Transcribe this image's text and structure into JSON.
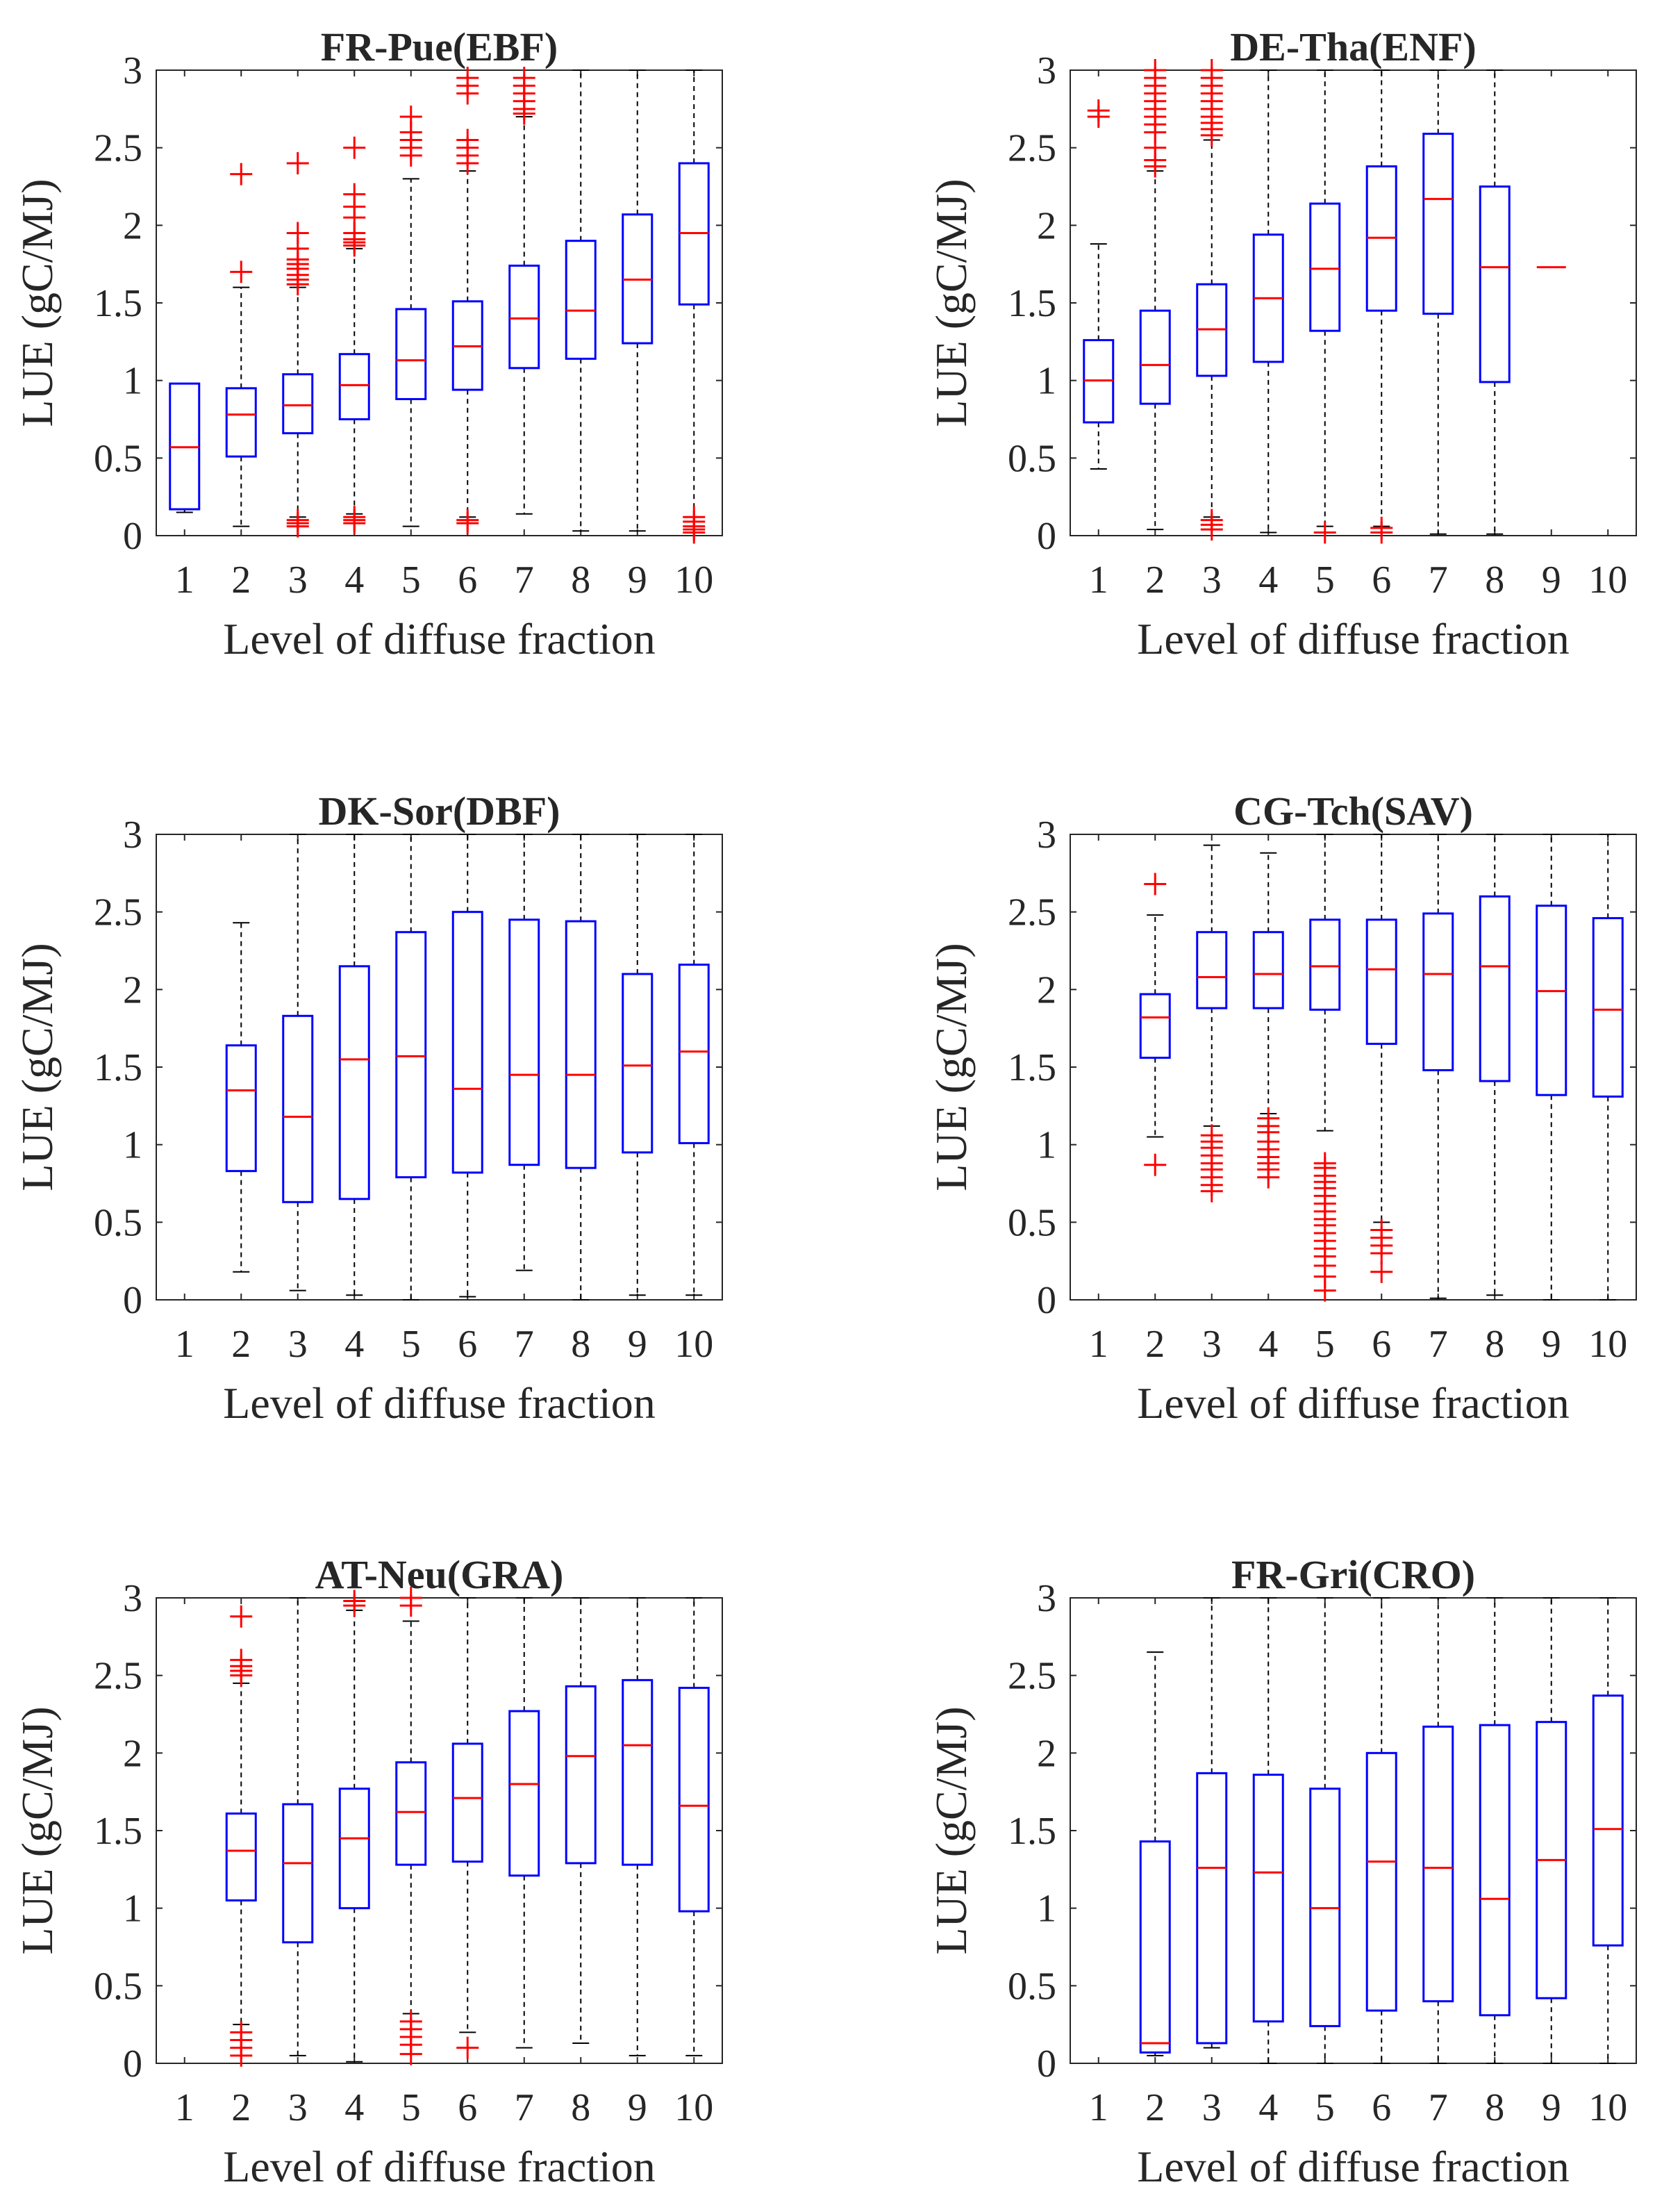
{
  "figure": {
    "colors": {
      "box": "#0000ff",
      "median": "#ff0000",
      "outlier": "#ff0000",
      "whisker": "#000000",
      "axis": "#262626",
      "background": "#ffffff"
    }
  },
  "chart_data": [
    {
      "type": "box",
      "title": "FR-Pue(EBF)",
      "xlabel": "Level of diffuse fraction",
      "ylabel": "LUE (gC/MJ)",
      "categories": [
        "1",
        "2",
        "3",
        "4",
        "5",
        "6",
        "7",
        "8",
        "9",
        "10"
      ],
      "ylim": [
        0,
        3
      ],
      "yticks": [
        "0",
        "0.5",
        "1",
        "1.5",
        "2",
        "2.5",
        "3"
      ],
      "boxes": [
        {
          "level": "1",
          "q1": 0.17,
          "median": 0.57,
          "q3": 0.98,
          "lower": 0.15,
          "upper": 0.98,
          "outliers": []
        },
        {
          "level": "2",
          "q1": 0.51,
          "median": 0.78,
          "q3": 0.95,
          "lower": 0.06,
          "upper": 1.6,
          "outliers": [
            1.7,
            2.33
          ]
        },
        {
          "level": "3",
          "q1": 0.66,
          "median": 0.84,
          "q3": 1.04,
          "lower": 0.12,
          "upper": 1.6,
          "outliers": [
            1.62,
            1.65,
            1.68,
            1.72,
            1.75,
            1.78,
            1.85,
            1.95,
            2.4,
            0.1,
            0.08,
            0.06
          ]
        },
        {
          "level": "4",
          "q1": 0.75,
          "median": 0.97,
          "q3": 1.17,
          "lower": 0.14,
          "upper": 1.85,
          "outliers": [
            1.87,
            1.89,
            1.91,
            1.95,
            2.05,
            2.12,
            2.2,
            2.5,
            0.12,
            0.1,
            0.08
          ]
        },
        {
          "level": "5",
          "q1": 0.88,
          "median": 1.13,
          "q3": 1.46,
          "lower": 0.06,
          "upper": 2.3,
          "outliers": [
            2.45,
            2.5,
            2.55,
            2.6,
            2.7
          ]
        },
        {
          "level": "6",
          "q1": 0.94,
          "median": 1.22,
          "q3": 1.51,
          "lower": 0.12,
          "upper": 2.35,
          "outliers": [
            2.4,
            2.45,
            2.5,
            2.55,
            2.85,
            2.9,
            2.95,
            0.1,
            0.08
          ]
        },
        {
          "level": "7",
          "q1": 1.08,
          "median": 1.4,
          "q3": 1.74,
          "lower": 0.14,
          "upper": 2.7,
          "outliers": [
            2.72,
            2.75,
            2.8,
            2.85,
            2.9,
            2.95
          ]
        },
        {
          "level": "8",
          "q1": 1.14,
          "median": 1.45,
          "q3": 1.9,
          "lower": 0.03,
          "upper": 3.0,
          "outliers": []
        },
        {
          "level": "9",
          "q1": 1.24,
          "median": 1.65,
          "q3": 2.07,
          "lower": 0.03,
          "upper": 3.0,
          "outliers": []
        },
        {
          "level": "10",
          "q1": 1.49,
          "median": 1.95,
          "q3": 2.4,
          "lower": 0.12,
          "upper": 3.0,
          "outliers": [
            0.02,
            0.04,
            0.06,
            0.09,
            0.12
          ]
        }
      ]
    },
    {
      "type": "box",
      "title": "DE-Tha(ENF)",
      "xlabel": "Level of diffuse fraction",
      "ylabel": "LUE (gC/MJ)",
      "categories": [
        "1",
        "2",
        "3",
        "4",
        "5",
        "6",
        "7",
        "8",
        "9",
        "10"
      ],
      "ylim": [
        0,
        3
      ],
      "yticks": [
        "0",
        "0.5",
        "1",
        "1.5",
        "2",
        "2.5",
        "3"
      ],
      "boxes": [
        {
          "level": "1",
          "q1": 0.73,
          "median": 1.0,
          "q3": 1.26,
          "lower": 0.43,
          "upper": 1.88,
          "outliers": [
            2.7,
            2.74
          ]
        },
        {
          "level": "2",
          "q1": 0.85,
          "median": 1.1,
          "q3": 1.45,
          "lower": 0.04,
          "upper": 2.35,
          "outliers": [
            2.38,
            2.42,
            2.5,
            2.6,
            2.65,
            2.7,
            2.75,
            2.8,
            2.85,
            2.9,
            2.95,
            3.0
          ]
        },
        {
          "level": "3",
          "q1": 1.03,
          "median": 1.33,
          "q3": 1.62,
          "lower": 0.12,
          "upper": 2.55,
          "outliers": [
            2.58,
            2.62,
            2.66,
            2.7,
            2.75,
            2.8,
            2.85,
            2.9,
            2.95,
            3.0,
            0.1,
            0.07,
            0.04
          ]
        },
        {
          "level": "4",
          "q1": 1.12,
          "median": 1.53,
          "q3": 1.94,
          "lower": 0.02,
          "upper": 3.0,
          "outliers": []
        },
        {
          "level": "5",
          "q1": 1.32,
          "median": 1.72,
          "q3": 2.14,
          "lower": 0.06,
          "upper": 3.0,
          "outliers": [
            0.02
          ]
        },
        {
          "level": "6",
          "q1": 1.45,
          "median": 1.92,
          "q3": 2.38,
          "lower": 0.06,
          "upper": 3.0,
          "outliers": [
            0.05,
            0.02
          ]
        },
        {
          "level": "7",
          "q1": 1.43,
          "median": 2.17,
          "q3": 2.59,
          "lower": 0.01,
          "upper": 3.0,
          "outliers": []
        },
        {
          "level": "8",
          "q1": 0.99,
          "median": 1.73,
          "q3": 2.25,
          "lower": 0.01,
          "upper": 3.0,
          "outliers": []
        },
        {
          "level": "9",
          "q1": 1.73,
          "median": 1.73,
          "q3": 1.73,
          "lower": 1.73,
          "upper": 1.73,
          "outliers": []
        }
      ]
    },
    {
      "type": "box",
      "title": "DK-Sor(DBF)",
      "xlabel": "Level of diffuse fraction",
      "ylabel": "LUE (gC/MJ)",
      "categories": [
        "1",
        "2",
        "3",
        "4",
        "5",
        "6",
        "7",
        "8",
        "9",
        "10"
      ],
      "ylim": [
        0,
        3
      ],
      "yticks": [
        "0",
        "0.5",
        "1",
        "1.5",
        "2",
        "2.5",
        "3"
      ],
      "boxes": [
        {
          "level": "2",
          "q1": 0.83,
          "median": 1.35,
          "q3": 1.64,
          "lower": 0.18,
          "upper": 2.43,
          "outliers": []
        },
        {
          "level": "3",
          "q1": 0.63,
          "median": 1.18,
          "q3": 1.83,
          "lower": 0.06,
          "upper": 3.0,
          "outliers": []
        },
        {
          "level": "4",
          "q1": 0.65,
          "median": 1.55,
          "q3": 2.15,
          "lower": 0.03,
          "upper": 3.0,
          "outliers": []
        },
        {
          "level": "5",
          "q1": 0.79,
          "median": 1.57,
          "q3": 2.37,
          "lower": 0.0,
          "upper": 3.0,
          "outliers": []
        },
        {
          "level": "6",
          "q1": 0.82,
          "median": 1.36,
          "q3": 2.5,
          "lower": 0.02,
          "upper": 3.0,
          "outliers": []
        },
        {
          "level": "7",
          "q1": 0.87,
          "median": 1.45,
          "q3": 2.45,
          "lower": 0.19,
          "upper": 3.0,
          "outliers": []
        },
        {
          "level": "8",
          "q1": 0.85,
          "median": 1.45,
          "q3": 2.44,
          "lower": 0.0,
          "upper": 3.0,
          "outliers": []
        },
        {
          "level": "9",
          "q1": 0.95,
          "median": 1.51,
          "q3": 2.1,
          "lower": 0.03,
          "upper": 3.0,
          "outliers": []
        },
        {
          "level": "10",
          "q1": 1.01,
          "median": 1.6,
          "q3": 2.16,
          "lower": 0.03,
          "upper": 3.0,
          "outliers": []
        }
      ]
    },
    {
      "type": "box",
      "title": "CG-Tch(SAV)",
      "xlabel": "Level of diffuse fraction",
      "ylabel": "LUE (gC/MJ)",
      "categories": [
        "1",
        "2",
        "3",
        "4",
        "5",
        "6",
        "7",
        "8",
        "9",
        "10"
      ],
      "ylim": [
        0,
        3
      ],
      "yticks": [
        "0",
        "0.5",
        "1",
        "1.5",
        "2",
        "2.5",
        "3"
      ],
      "boxes": [
        {
          "level": "2",
          "q1": 1.56,
          "median": 1.82,
          "q3": 1.97,
          "lower": 1.05,
          "upper": 2.48,
          "outliers": [
            2.68,
            0.87
          ]
        },
        {
          "level": "3",
          "q1": 1.88,
          "median": 2.08,
          "q3": 2.37,
          "lower": 1.12,
          "upper": 2.93,
          "outliers": [
            1.06,
            1.02,
            0.98,
            0.93,
            0.88,
            0.84,
            0.79,
            0.74,
            0.7
          ]
        },
        {
          "level": "4",
          "q1": 1.88,
          "median": 2.1,
          "q3": 2.37,
          "lower": 1.2,
          "upper": 2.88,
          "outliers": [
            1.17,
            1.12,
            1.08,
            1.02,
            0.97,
            0.92,
            0.88,
            0.84,
            0.79
          ]
        },
        {
          "level": "5",
          "q1": 1.87,
          "median": 2.15,
          "q3": 2.45,
          "lower": 1.09,
          "upper": 3.0,
          "outliers": [
            0.88,
            0.85,
            0.8,
            0.76,
            0.72,
            0.67,
            0.62,
            0.57,
            0.52,
            0.48,
            0.43,
            0.38,
            0.33,
            0.28,
            0.22,
            0.15,
            0.06
          ]
        },
        {
          "level": "6",
          "q1": 1.65,
          "median": 2.13,
          "q3": 2.45,
          "lower": 0.5,
          "upper": 3.0,
          "outliers": [
            0.45,
            0.4,
            0.35,
            0.3,
            0.18
          ]
        },
        {
          "level": "7",
          "q1": 1.48,
          "median": 2.1,
          "q3": 2.49,
          "lower": 0.01,
          "upper": 3.0,
          "outliers": []
        },
        {
          "level": "8",
          "q1": 1.41,
          "median": 2.15,
          "q3": 2.6,
          "lower": 0.03,
          "upper": 3.0,
          "outliers": []
        },
        {
          "level": "9",
          "q1": 1.32,
          "median": 1.99,
          "q3": 2.54,
          "lower": 0.0,
          "upper": 3.0,
          "outliers": []
        },
        {
          "level": "10",
          "q1": 1.31,
          "median": 1.87,
          "q3": 2.46,
          "lower": 0.0,
          "upper": 3.0,
          "outliers": []
        }
      ]
    },
    {
      "type": "box",
      "title": "AT-Neu(GRA)",
      "xlabel": "Level of diffuse fraction",
      "ylabel": "LUE (gC/MJ)",
      "categories": [
        "1",
        "2",
        "3",
        "4",
        "5",
        "6",
        "7",
        "8",
        "9",
        "10"
      ],
      "ylim": [
        0,
        3
      ],
      "yticks": [
        "0",
        "0.5",
        "1",
        "1.5",
        "2",
        "2.5",
        "3"
      ],
      "boxes": [
        {
          "level": "2",
          "q1": 1.05,
          "median": 1.37,
          "q3": 1.61,
          "lower": 0.25,
          "upper": 2.45,
          "outliers": [
            2.5,
            2.53,
            2.56,
            2.6,
            2.88,
            0.2,
            0.15,
            0.1,
            0.05
          ]
        },
        {
          "level": "3",
          "q1": 0.78,
          "median": 1.29,
          "q3": 1.67,
          "lower": 0.05,
          "upper": 3.0,
          "outliers": []
        },
        {
          "level": "4",
          "q1": 1.0,
          "median": 1.45,
          "q3": 1.77,
          "lower": 0.01,
          "upper": 2.92,
          "outliers": [
            2.95,
            2.98
          ]
        },
        {
          "level": "5",
          "q1": 1.28,
          "median": 1.62,
          "q3": 1.94,
          "lower": 0.32,
          "upper": 2.85,
          "outliers": [
            2.95,
            3.0,
            0.27,
            0.22,
            0.17,
            0.12,
            0.06
          ]
        },
        {
          "level": "6",
          "q1": 1.3,
          "median": 1.71,
          "q3": 2.06,
          "lower": 0.2,
          "upper": 3.0,
          "outliers": [
            0.1
          ]
        },
        {
          "level": "7",
          "q1": 1.21,
          "median": 1.8,
          "q3": 2.27,
          "lower": 0.1,
          "upper": 3.0,
          "outliers": []
        },
        {
          "level": "8",
          "q1": 1.29,
          "median": 1.98,
          "q3": 2.43,
          "lower": 0.13,
          "upper": 3.0,
          "outliers": []
        },
        {
          "level": "9",
          "q1": 1.28,
          "median": 2.05,
          "q3": 2.47,
          "lower": 0.05,
          "upper": 3.0,
          "outliers": []
        },
        {
          "level": "10",
          "q1": 0.98,
          "median": 1.66,
          "q3": 2.42,
          "lower": 0.05,
          "upper": 3.0,
          "outliers": []
        }
      ]
    },
    {
      "type": "box",
      "title": "FR-Gri(CRO)",
      "xlabel": "Level of diffuse fraction",
      "ylabel": "LUE (gC/MJ)",
      "categories": [
        "1",
        "2",
        "3",
        "4",
        "5",
        "6",
        "7",
        "8",
        "9",
        "10"
      ],
      "ylim": [
        0,
        3
      ],
      "yticks": [
        "0",
        "0.5",
        "1",
        "1.5",
        "2",
        "2.5",
        "3"
      ],
      "boxes": [
        {
          "level": "2",
          "q1": 0.07,
          "median": 0.13,
          "q3": 1.43,
          "lower": 0.05,
          "upper": 2.65,
          "outliers": []
        },
        {
          "level": "3",
          "q1": 0.13,
          "median": 1.26,
          "q3": 1.87,
          "lower": 0.1,
          "upper": 3.0,
          "outliers": []
        },
        {
          "level": "4",
          "q1": 0.27,
          "median": 1.23,
          "q3": 1.86,
          "lower": 0.0,
          "upper": 3.0,
          "outliers": []
        },
        {
          "level": "5",
          "q1": 0.24,
          "median": 1.0,
          "q3": 1.77,
          "lower": 0.0,
          "upper": 3.0,
          "outliers": []
        },
        {
          "level": "6",
          "q1": 0.34,
          "median": 1.3,
          "q3": 2.0,
          "lower": 0.0,
          "upper": 3.0,
          "outliers": []
        },
        {
          "level": "7",
          "q1": 0.4,
          "median": 1.26,
          "q3": 2.17,
          "lower": 0.0,
          "upper": 3.0,
          "outliers": []
        },
        {
          "level": "8",
          "q1": 0.31,
          "median": 1.06,
          "q3": 2.18,
          "lower": 0.0,
          "upper": 3.0,
          "outliers": []
        },
        {
          "level": "9",
          "q1": 0.42,
          "median": 1.31,
          "q3": 2.2,
          "lower": 0.0,
          "upper": 3.0,
          "outliers": []
        },
        {
          "level": "10",
          "q1": 0.76,
          "median": 1.51,
          "q3": 2.37,
          "lower": 0.0,
          "upper": 3.0,
          "outliers": []
        }
      ]
    }
  ]
}
